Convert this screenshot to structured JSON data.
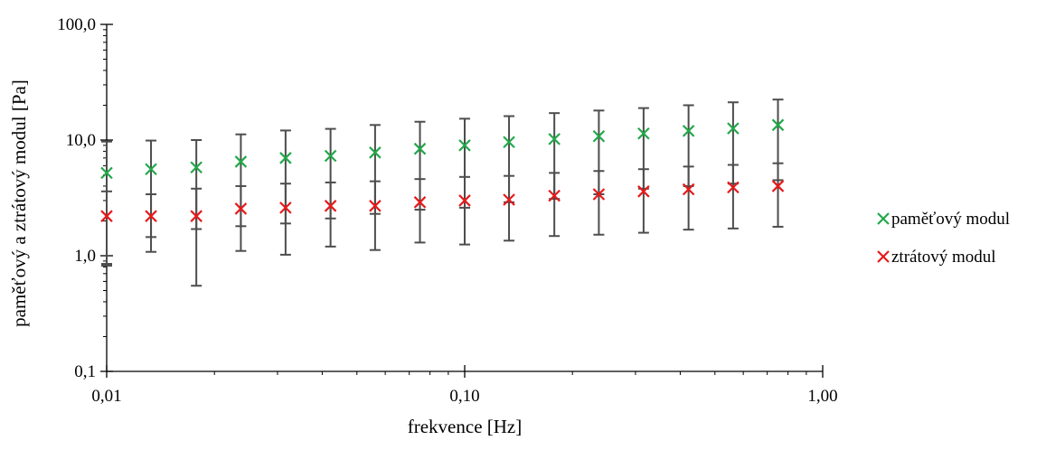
{
  "chart_data": {
    "type": "scatter",
    "xlabel": "frekvence [Hz]",
    "ylabel": "paměťový a ztrátový modul [Pa]",
    "x_scale": "log",
    "y_scale": "log",
    "xlim": [
      0.01,
      1.0
    ],
    "ylim": [
      0.1,
      100.0
    ],
    "x_ticks": [
      {
        "value": 0.01,
        "label": "0,01"
      },
      {
        "value": 0.1,
        "label": "0,10"
      },
      {
        "value": 1.0,
        "label": "1,00"
      }
    ],
    "y_ticks": [
      {
        "value": 0.1,
        "label": "0,1"
      },
      {
        "value": 1.0,
        "label": "1,0"
      },
      {
        "value": 10.0,
        "label": "10,0"
      },
      {
        "value": 100.0,
        "label": "100,0"
      }
    ],
    "grid": false,
    "legend_position": "right",
    "series": [
      {
        "name": "paměťový modul",
        "color": "#22a84a",
        "marker": "x",
        "points": [
          {
            "x": 0.01,
            "y": 5.2,
            "y_low": 0.82,
            "y_high": 9.7
          },
          {
            "x": 0.0133,
            "y": 5.6,
            "y_low": 1.45,
            "y_high": 9.9
          },
          {
            "x": 0.0178,
            "y": 5.8,
            "y_low": 1.7,
            "y_high": 10.0
          },
          {
            "x": 0.0237,
            "y": 6.5,
            "y_low": 1.8,
            "y_high": 11.2
          },
          {
            "x": 0.0316,
            "y": 7.0,
            "y_low": 1.9,
            "y_high": 12.1
          },
          {
            "x": 0.0422,
            "y": 7.3,
            "y_low": 2.1,
            "y_high": 12.5
          },
          {
            "x": 0.0562,
            "y": 7.8,
            "y_low": 2.3,
            "y_high": 13.5
          },
          {
            "x": 0.075,
            "y": 8.4,
            "y_low": 2.5,
            "y_high": 14.4
          },
          {
            "x": 0.1,
            "y": 9.0,
            "y_low": 2.6,
            "y_high": 15.3
          },
          {
            "x": 0.133,
            "y": 9.6,
            "y_low": 2.9,
            "y_high": 16.1
          },
          {
            "x": 0.178,
            "y": 10.2,
            "y_low": 3.1,
            "y_high": 17.1
          },
          {
            "x": 0.237,
            "y": 10.8,
            "y_low": 3.4,
            "y_high": 18.0
          },
          {
            "x": 0.316,
            "y": 11.4,
            "y_low": 3.8,
            "y_high": 18.9
          },
          {
            "x": 0.422,
            "y": 12.0,
            "y_low": 4.0,
            "y_high": 20.0
          },
          {
            "x": 0.562,
            "y": 12.6,
            "y_low": 4.2,
            "y_high": 21.2
          },
          {
            "x": 0.75,
            "y": 13.5,
            "y_low": 4.5,
            "y_high": 22.4
          }
        ]
      },
      {
        "name": "ztrátový modul",
        "color": "#e8191a",
        "marker": "x",
        "points": [
          {
            "x": 0.01,
            "y": 2.2,
            "y_low": 0.85,
            "y_high": 3.6
          },
          {
            "x": 0.0133,
            "y": 2.2,
            "y_low": 1.08,
            "y_high": 3.4
          },
          {
            "x": 0.0178,
            "y": 2.2,
            "y_low": 0.55,
            "y_high": 3.8
          },
          {
            "x": 0.0237,
            "y": 2.55,
            "y_low": 1.1,
            "y_high": 4.0
          },
          {
            "x": 0.0316,
            "y": 2.6,
            "y_low": 1.02,
            "y_high": 4.2
          },
          {
            "x": 0.0422,
            "y": 2.7,
            "y_low": 1.2,
            "y_high": 4.3
          },
          {
            "x": 0.0562,
            "y": 2.7,
            "y_low": 1.12,
            "y_high": 4.4
          },
          {
            "x": 0.075,
            "y": 2.9,
            "y_low": 1.3,
            "y_high": 4.6
          },
          {
            "x": 0.1,
            "y": 3.0,
            "y_low": 1.25,
            "y_high": 4.8
          },
          {
            "x": 0.133,
            "y": 3.05,
            "y_low": 1.35,
            "y_high": 4.9
          },
          {
            "x": 0.178,
            "y": 3.3,
            "y_low": 1.48,
            "y_high": 5.2
          },
          {
            "x": 0.237,
            "y": 3.4,
            "y_low": 1.52,
            "y_high": 5.4
          },
          {
            "x": 0.316,
            "y": 3.6,
            "y_low": 1.58,
            "y_high": 5.6
          },
          {
            "x": 0.422,
            "y": 3.75,
            "y_low": 1.68,
            "y_high": 5.9
          },
          {
            "x": 0.562,
            "y": 3.9,
            "y_low": 1.72,
            "y_high": 6.1
          },
          {
            "x": 0.75,
            "y": 4.0,
            "y_low": 1.78,
            "y_high": 6.3
          }
        ]
      }
    ],
    "colors": {
      "axis": "#000000",
      "error_bar": "#4d4d4d"
    }
  }
}
